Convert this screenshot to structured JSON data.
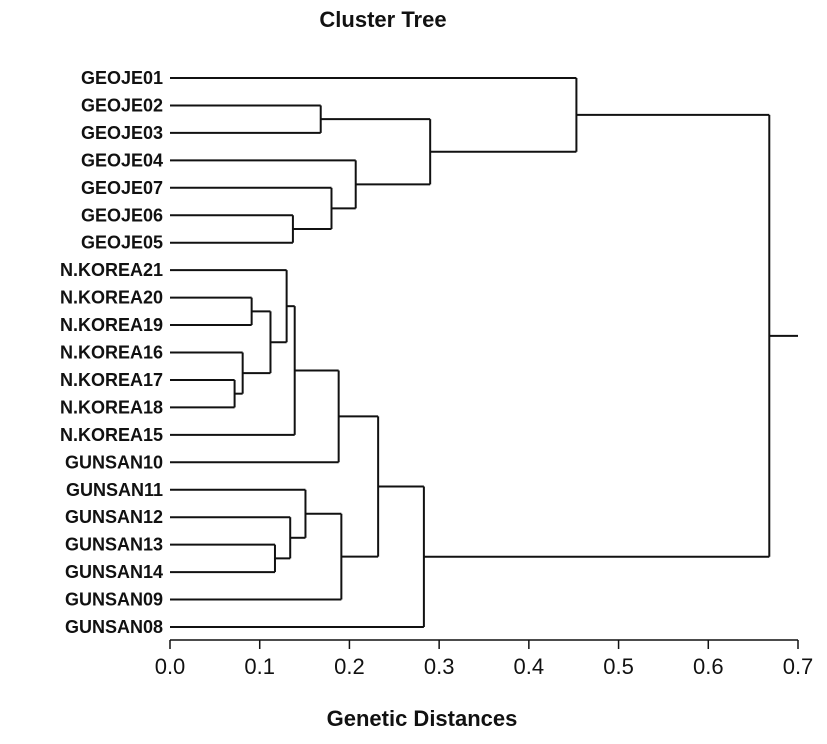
{
  "chart_data": {
    "type": "dendrogram",
    "title": "Cluster Tree",
    "xlabel": "Genetic Distances",
    "xlim": [
      0,
      0.7
    ],
    "xticks": [
      "0.0",
      "0.1",
      "0.2",
      "0.3",
      "0.4",
      "0.5",
      "0.6",
      "0.7"
    ],
    "leaves": [
      "GEOJE01",
      "GEOJE02",
      "GEOJE03",
      "GEOJE04",
      "GEOJE07",
      "GEOJE06",
      "GEOJE05",
      "N.KOREA21",
      "N.KOREA20",
      "N.KOREA19",
      "N.KOREA16",
      "N.KOREA17",
      "N.KOREA18",
      "N.KOREA15",
      "GUNSAN10",
      "GUNSAN11",
      "GUNSAN12",
      "GUNSAN13",
      "GUNSAN14",
      "GUNSAN09",
      "GUNSAN08"
    ],
    "merges": [
      {
        "id": "m1",
        "a": "GEOJE02",
        "b": "GEOJE03",
        "height": 0.168
      },
      {
        "id": "m2",
        "a": "GEOJE06",
        "b": "GEOJE05",
        "height": 0.137
      },
      {
        "id": "m3",
        "a": "GEOJE07",
        "b": "m2",
        "height": 0.18
      },
      {
        "id": "m4",
        "a": "GEOJE04",
        "b": "m3",
        "height": 0.207
      },
      {
        "id": "m5",
        "a": "m1",
        "b": "m4",
        "height": 0.29
      },
      {
        "id": "m6",
        "a": "GEOJE01",
        "b": "m5",
        "height": 0.453
      },
      {
        "id": "m7",
        "a": "N.KOREA20",
        "b": "N.KOREA19",
        "height": 0.091
      },
      {
        "id": "m8",
        "a": "N.KOREA17",
        "b": "N.KOREA18",
        "height": 0.072
      },
      {
        "id": "m9",
        "a": "N.KOREA16",
        "b": "m8",
        "height": 0.081
      },
      {
        "id": "m10",
        "a": "m7",
        "b": "m9",
        "height": 0.112
      },
      {
        "id": "m11",
        "a": "N.KOREA21",
        "b": "m10",
        "height": 0.13
      },
      {
        "id": "m12",
        "a": "m11",
        "b": "N.KOREA15",
        "height": 0.139
      },
      {
        "id": "m13",
        "a": "m12",
        "b": "GUNSAN10",
        "height": 0.188
      },
      {
        "id": "m14",
        "a": "GUNSAN13",
        "b": "GUNSAN14",
        "height": 0.117
      },
      {
        "id": "m15",
        "a": "GUNSAN12",
        "b": "m14",
        "height": 0.134
      },
      {
        "id": "m16",
        "a": "GUNSAN11",
        "b": "m15",
        "height": 0.151
      },
      {
        "id": "m17",
        "a": "m16",
        "b": "GUNSAN09",
        "height": 0.191
      },
      {
        "id": "m18",
        "a": "m13",
        "b": "m17",
        "height": 0.232
      },
      {
        "id": "m19",
        "a": "m18",
        "b": "GUNSAN08",
        "height": 0.283
      },
      {
        "id": "m20",
        "a": "m6",
        "b": "m19",
        "height": 0.668
      }
    ],
    "root_height": 0.7
  }
}
